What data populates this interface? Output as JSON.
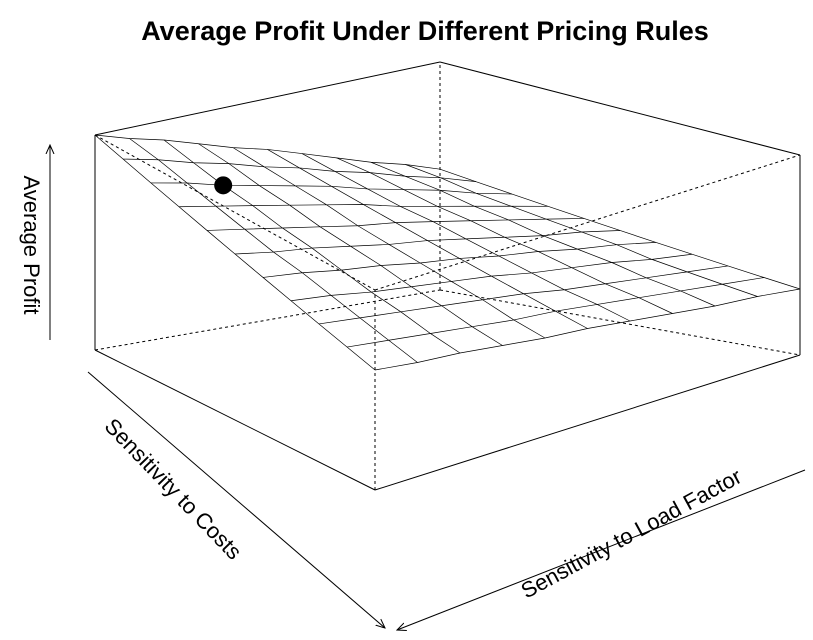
{
  "chart_data": {
    "type": "surface",
    "title": "Average Profit Under Different Pricing Rules",
    "xlabel": "Sensitivity to Costs",
    "ylabel": "Sensitivity to Load Factor",
    "zlabel": "Average Profit",
    "z": [
      [
        1.0,
        0.95,
        0.91,
        0.86,
        0.81,
        0.77,
        0.72,
        0.67,
        0.62,
        0.58,
        0.53
      ],
      [
        0.96,
        0.92,
        0.87,
        0.83,
        0.78,
        0.74,
        0.69,
        0.65,
        0.6,
        0.56,
        0.51
      ],
      [
        0.92,
        0.88,
        0.83,
        0.79,
        0.75,
        0.71,
        0.66,
        0.62,
        0.58,
        0.53,
        0.49
      ],
      [
        0.88,
        0.84,
        0.8,
        0.76,
        0.72,
        0.68,
        0.63,
        0.59,
        0.55,
        0.51,
        0.47
      ],
      [
        0.84,
        0.8,
        0.76,
        0.72,
        0.68,
        0.65,
        0.61,
        0.57,
        0.53,
        0.49,
        0.45
      ],
      [
        0.8,
        0.76,
        0.73,
        0.69,
        0.65,
        0.62,
        0.58,
        0.54,
        0.5,
        0.47,
        0.43
      ],
      [
        0.76,
        0.73,
        0.69,
        0.66,
        0.62,
        0.59,
        0.55,
        0.52,
        0.48,
        0.45,
        0.41
      ],
      [
        0.72,
        0.69,
        0.65,
        0.62,
        0.59,
        0.56,
        0.52,
        0.49,
        0.46,
        0.42,
        0.39
      ],
      [
        0.68,
        0.65,
        0.62,
        0.59,
        0.56,
        0.53,
        0.49,
        0.46,
        0.43,
        0.4,
        0.37
      ],
      [
        0.64,
        0.61,
        0.58,
        0.55,
        0.52,
        0.5,
        0.47,
        0.44,
        0.41,
        0.38,
        0.35
      ],
      [
        0.6,
        0.57,
        0.55,
        0.52,
        0.49,
        0.47,
        0.44,
        0.41,
        0.38,
        0.36,
        0.33
      ]
    ],
    "point": {
      "x": 0.2,
      "y": 0.2,
      "z": 0.83
    }
  }
}
